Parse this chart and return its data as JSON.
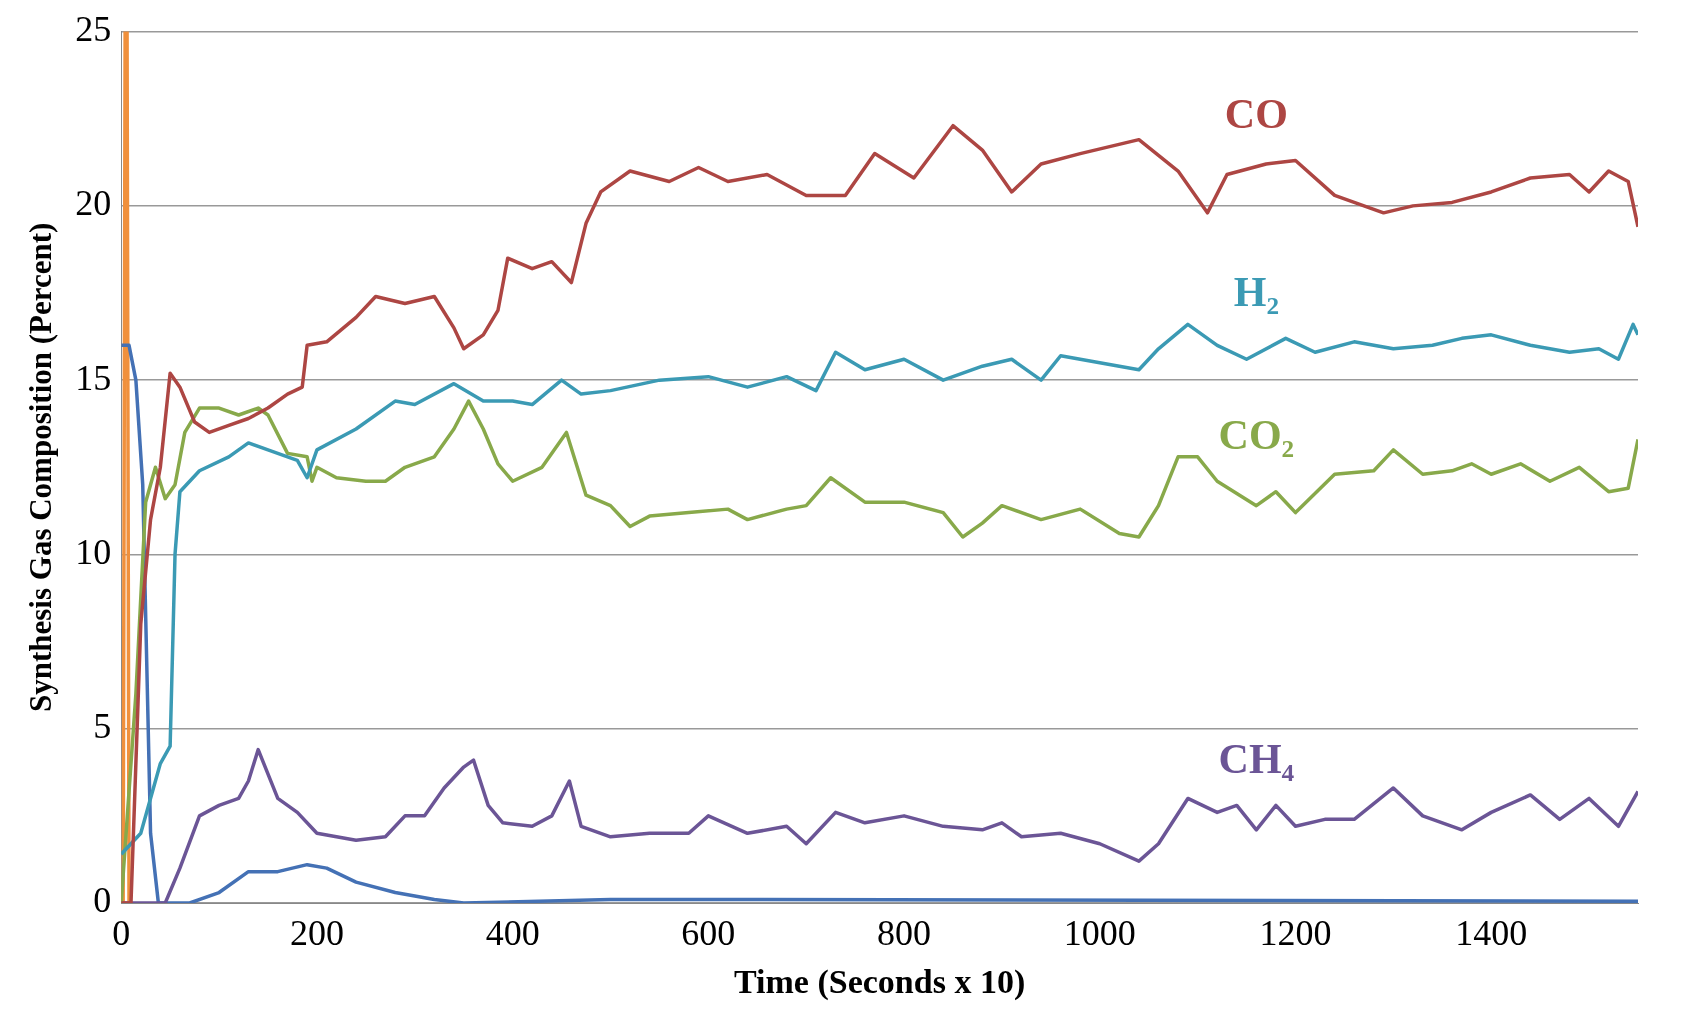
{
  "chart_data": {
    "type": "line",
    "xlabel": "Time (Seconds x 10)",
    "ylabel": "Synthesis Gas Composition (Percent)",
    "xlim": [
      0,
      1550
    ],
    "xticks": [
      0,
      200,
      400,
      600,
      800,
      1000,
      1200,
      1400
    ],
    "ylim": [
      0,
      25
    ],
    "yticks": [
      0,
      5,
      10,
      15,
      20,
      25
    ],
    "grid": "y",
    "legend": false,
    "marker": "none",
    "line_style": "solid",
    "series": [
      {
        "name": "CO",
        "color": "#ad4643",
        "x": [
          0,
          10,
          20,
          30,
          40,
          50,
          60,
          75,
          90,
          110,
          130,
          150,
          170,
          185,
          190,
          210,
          240,
          260,
          290,
          320,
          340,
          350,
          370,
          385,
          395,
          420,
          440,
          460,
          475,
          490,
          520,
          560,
          590,
          620,
          660,
          700,
          740,
          770,
          810,
          850,
          880,
          910,
          940,
          980,
          1040,
          1080,
          1110,
          1130,
          1170,
          1200,
          1240,
          1290,
          1320,
          1360,
          1400,
          1440,
          1480,
          1500,
          1520,
          1540,
          1550
        ],
        "values": [
          0,
          0,
          8,
          11,
          12.5,
          15.2,
          14.8,
          13.8,
          13.5,
          13.7,
          13.9,
          14.2,
          14.6,
          14.8,
          16,
          16.1,
          16.8,
          17.4,
          17.2,
          17.4,
          16.5,
          15.9,
          16.3,
          17,
          18.5,
          18.2,
          18.4,
          17.8,
          19.5,
          20.4,
          21,
          20.7,
          21.1,
          20.7,
          20.9,
          20.3,
          20.3,
          21.5,
          20.8,
          22.3,
          21.6,
          20.4,
          21.2,
          21.5,
          21.9,
          21,
          19.8,
          20.9,
          21.2,
          21.3,
          20.3,
          19.8,
          20,
          20.1,
          20.4,
          20.8,
          20.9,
          20.4,
          21,
          20.7,
          19.4
        ]
      },
      {
        "name": "H₂",
        "color": "#3b9ab4",
        "x": [
          0,
          20,
          40,
          50,
          55,
          60,
          80,
          110,
          130,
          150,
          180,
          190,
          200,
          240,
          280,
          300,
          340,
          370,
          400,
          420,
          450,
          470,
          500,
          550,
          600,
          640,
          680,
          710,
          730,
          760,
          800,
          840,
          880,
          910,
          940,
          960,
          1000,
          1040,
          1060,
          1090,
          1120,
          1150,
          1190,
          1220,
          1260,
          1300,
          1340,
          1370,
          1400,
          1440,
          1480,
          1510,
          1530,
          1545,
          1550
        ],
        "values": [
          1.4,
          2,
          4,
          4.5,
          10,
          11.8,
          12.4,
          12.8,
          13.2,
          13,
          12.7,
          12.2,
          13,
          13.6,
          14.4,
          14.3,
          14.9,
          14.4,
          14.4,
          14.3,
          15,
          14.6,
          14.7,
          15,
          15.1,
          14.8,
          15.1,
          14.7,
          15.8,
          15.3,
          15.6,
          15,
          15.4,
          15.6,
          15,
          15.7,
          15.5,
          15.3,
          15.9,
          16.6,
          16,
          15.6,
          16.2,
          15.8,
          16.1,
          15.9,
          16,
          16.2,
          16.3,
          16,
          15.8,
          15.9,
          15.6,
          16.6,
          16.3
        ]
      },
      {
        "name": "CO₂",
        "color": "#88a94a",
        "x": [
          0,
          15,
          25,
          35,
          45,
          55,
          65,
          80,
          100,
          120,
          140,
          150,
          170,
          190,
          195,
          200,
          220,
          250,
          270,
          290,
          320,
          340,
          355,
          370,
          385,
          400,
          430,
          455,
          475,
          500,
          520,
          540,
          580,
          620,
          640,
          680,
          700,
          725,
          760,
          800,
          840,
          860,
          880,
          900,
          940,
          980,
          1020,
          1040,
          1060,
          1080,
          1100,
          1120,
          1160,
          1180,
          1200,
          1240,
          1280,
          1300,
          1330,
          1360,
          1380,
          1400,
          1430,
          1460,
          1490,
          1520,
          1540,
          1550
        ],
        "values": [
          0,
          6,
          11.5,
          12.5,
          11.6,
          12,
          13.5,
          14.2,
          14.2,
          14,
          14.2,
          14,
          12.9,
          12.8,
          12.1,
          12.5,
          12.2,
          12.1,
          12.1,
          12.5,
          12.8,
          13.6,
          14.4,
          13.6,
          12.6,
          12.1,
          12.5,
          13.5,
          11.7,
          11.4,
          10.8,
          11.1,
          11.2,
          11.3,
          11,
          11.3,
          11.4,
          12.2,
          11.5,
          11.5,
          11.2,
          10.5,
          10.9,
          11.4,
          11,
          11.3,
          10.6,
          10.5,
          11.4,
          12.8,
          12.8,
          12.1,
          11.4,
          11.8,
          11.2,
          12.3,
          12.4,
          13,
          12.3,
          12.4,
          12.6,
          12.3,
          12.6,
          12.1,
          12.5,
          11.8,
          11.9,
          13.3
        ]
      },
      {
        "name": "CH₄",
        "color": "#6b5596",
        "x": [
          0,
          45,
          60,
          80,
          100,
          120,
          130,
          140,
          160,
          180,
          200,
          240,
          270,
          290,
          310,
          330,
          350,
          360,
          375,
          390,
          420,
          440,
          458,
          470,
          500,
          540,
          580,
          600,
          640,
          680,
          700,
          730,
          760,
          800,
          840,
          880,
          900,
          920,
          960,
          1000,
          1040,
          1060,
          1090,
          1120,
          1140,
          1160,
          1180,
          1200,
          1230,
          1260,
          1300,
          1330,
          1370,
          1400,
          1440,
          1470,
          1500,
          1530,
          1550
        ],
        "values": [
          0,
          0,
          1,
          2.5,
          2.8,
          3,
          3.5,
          4.4,
          3,
          2.6,
          2,
          1.8,
          1.9,
          2.5,
          2.5,
          3.3,
          3.9,
          4.1,
          2.8,
          2.3,
          2.2,
          2.5,
          3.5,
          2.2,
          1.9,
          2,
          2,
          2.5,
          2,
          2.2,
          1.7,
          2.6,
          2.3,
          2.5,
          2.2,
          2.1,
          2.3,
          1.9,
          2,
          1.7,
          1.2,
          1.7,
          3,
          2.6,
          2.8,
          2.1,
          2.8,
          2.2,
          2.4,
          2.4,
          3.3,
          2.5,
          2.1,
          2.6,
          3.1,
          2.4,
          3,
          2.2,
          3.2
        ]
      },
      {
        "color": "#4471b5",
        "x": [
          0,
          8,
          15,
          22,
          30,
          38,
          50,
          70,
          100,
          130,
          160,
          190,
          210,
          240,
          280,
          320,
          350,
          500,
          600,
          1550
        ],
        "values": [
          16,
          16,
          15,
          12,
          2,
          0,
          0,
          0,
          0.3,
          0.9,
          0.9,
          1.1,
          1,
          0.6,
          0.3,
          0.1,
          0,
          0.1,
          0.1,
          0.05
        ]
      },
      {
        "color": "#f0903c",
        "x": [
          2,
          4,
          6,
          8
        ],
        "values": [
          0,
          25,
          25,
          0
        ]
      }
    ]
  }
}
